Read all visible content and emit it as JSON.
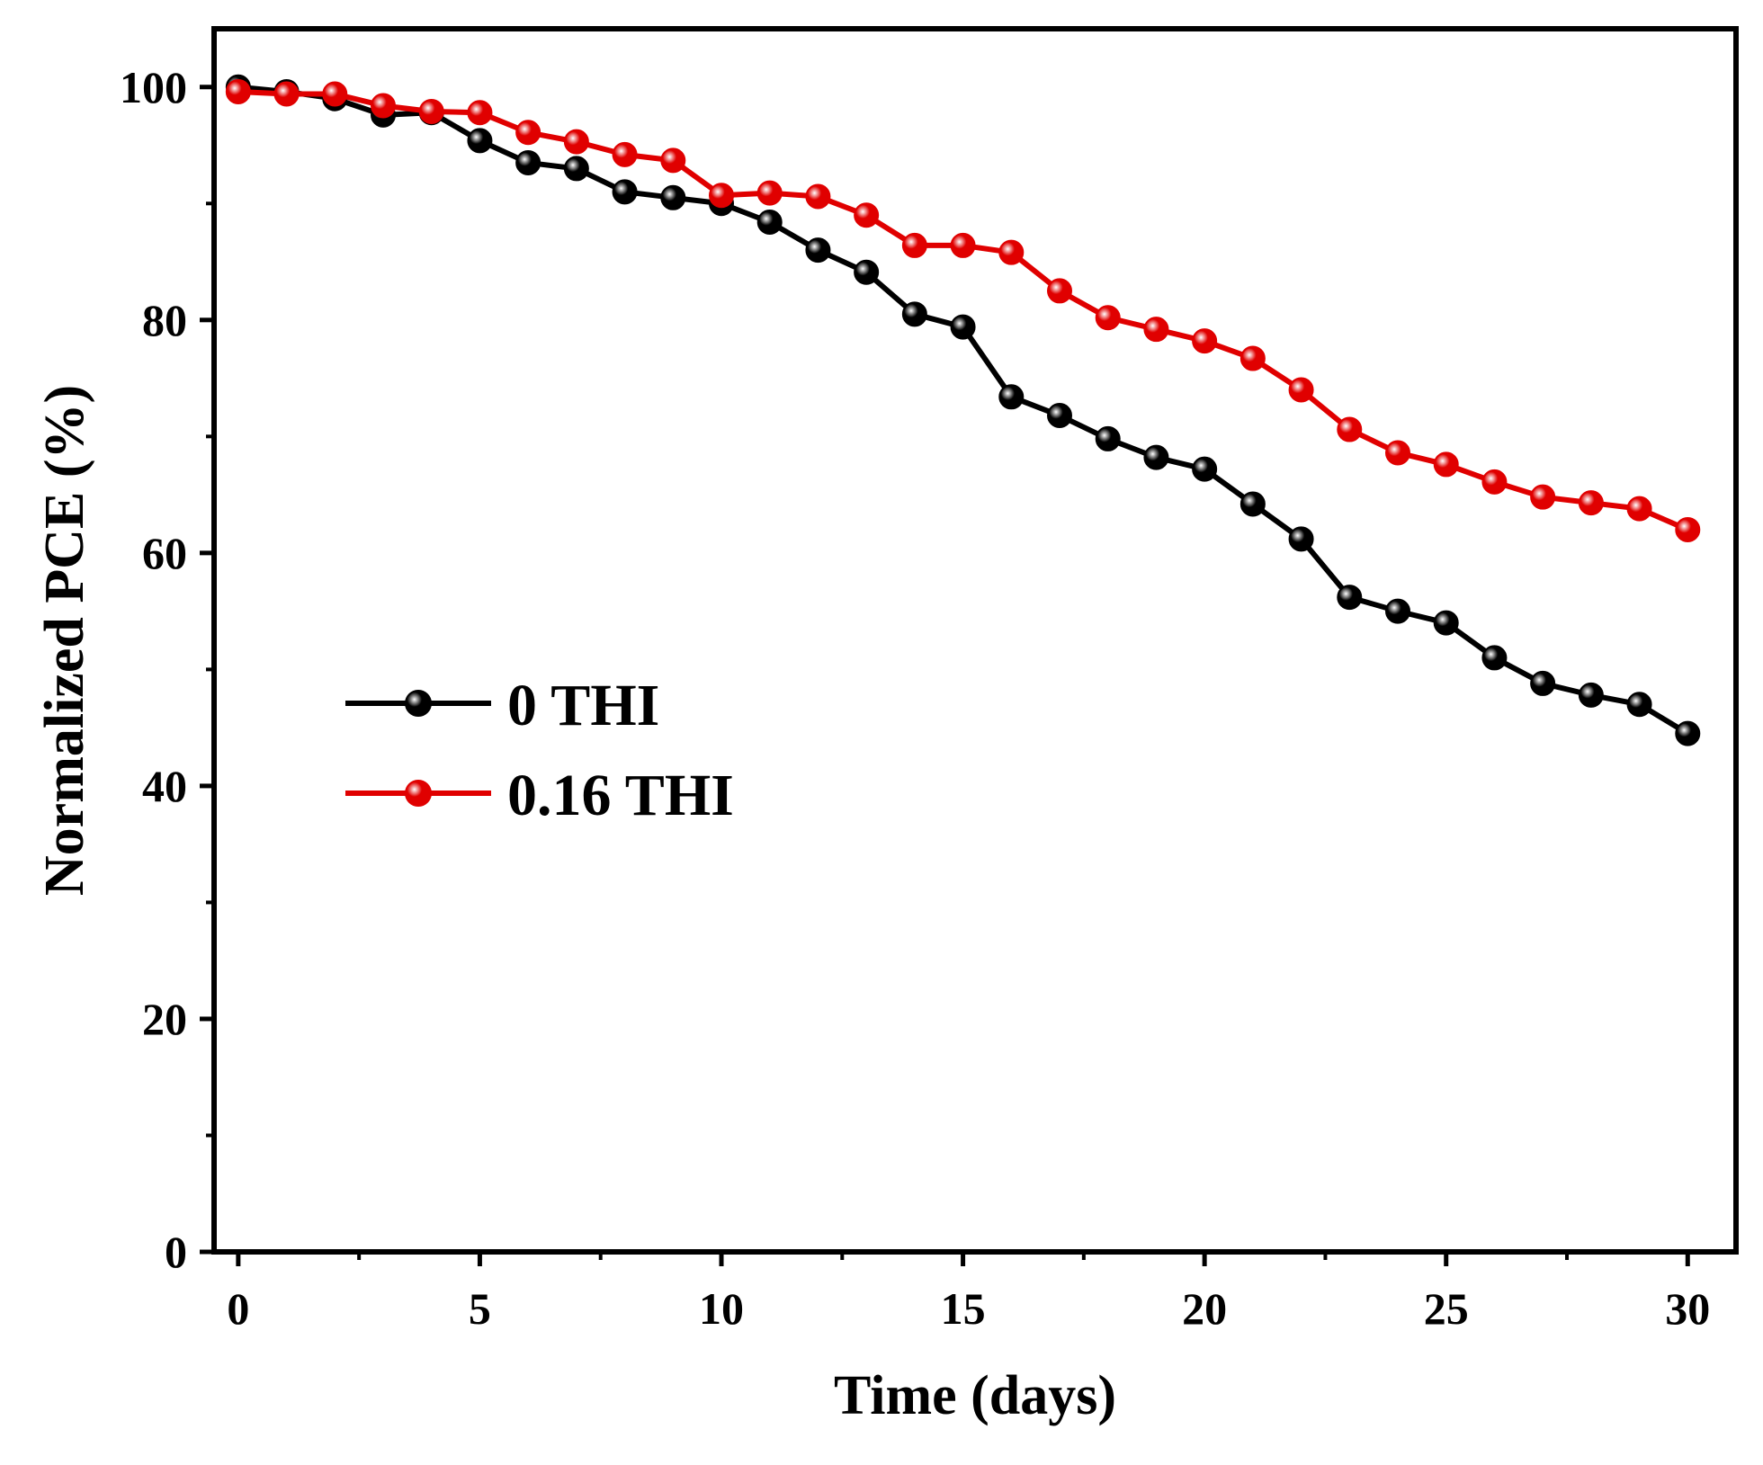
{
  "chart_data": {
    "type": "line",
    "title": "",
    "xlabel": "Time (days)",
    "ylabel": "Normalized PCE (%)",
    "xlim": [
      -0.5,
      31
    ],
    "ylim": [
      0,
      105
    ],
    "xticks": [
      0,
      5,
      10,
      15,
      20,
      25,
      30
    ],
    "yticks": [
      0,
      20,
      40,
      60,
      80,
      100
    ],
    "x": [
      0,
      1,
      2,
      3,
      4,
      5,
      6,
      7,
      8,
      9,
      10,
      11,
      12,
      13,
      14,
      15,
      16,
      17,
      18,
      19,
      20,
      21,
      22,
      23,
      24,
      25,
      26,
      27,
      28,
      29,
      30
    ],
    "grid": false,
    "legend_position": "center-left",
    "series": [
      {
        "name": "0 THI",
        "color": "#000000",
        "values": [
          100,
          99.6,
          99,
          97.6,
          97.8,
          95.4,
          93.5,
          93.0,
          91.0,
          90.5,
          90.0,
          88.4,
          86.0,
          84.1,
          80.5,
          79.4,
          73.4,
          71.8,
          69.8,
          68.2,
          67.2,
          64.2,
          61.2,
          56.2,
          55.0,
          54.0,
          51.0,
          48.8,
          47.8,
          47.0,
          44.5
        ]
      },
      {
        "name": "0.16 THI",
        "color": "#e00000",
        "values": [
          99.6,
          99.4,
          99.4,
          98.4,
          97.9,
          97.8,
          96.1,
          95.3,
          94.2,
          93.7,
          90.7,
          90.9,
          90.6,
          89.0,
          86.4,
          86.4,
          85.8,
          82.5,
          80.2,
          79.2,
          78.2,
          76.7,
          74.0,
          70.6,
          68.6,
          67.6,
          66.1,
          64.8,
          64.3,
          63.8,
          62.0
        ]
      }
    ]
  }
}
